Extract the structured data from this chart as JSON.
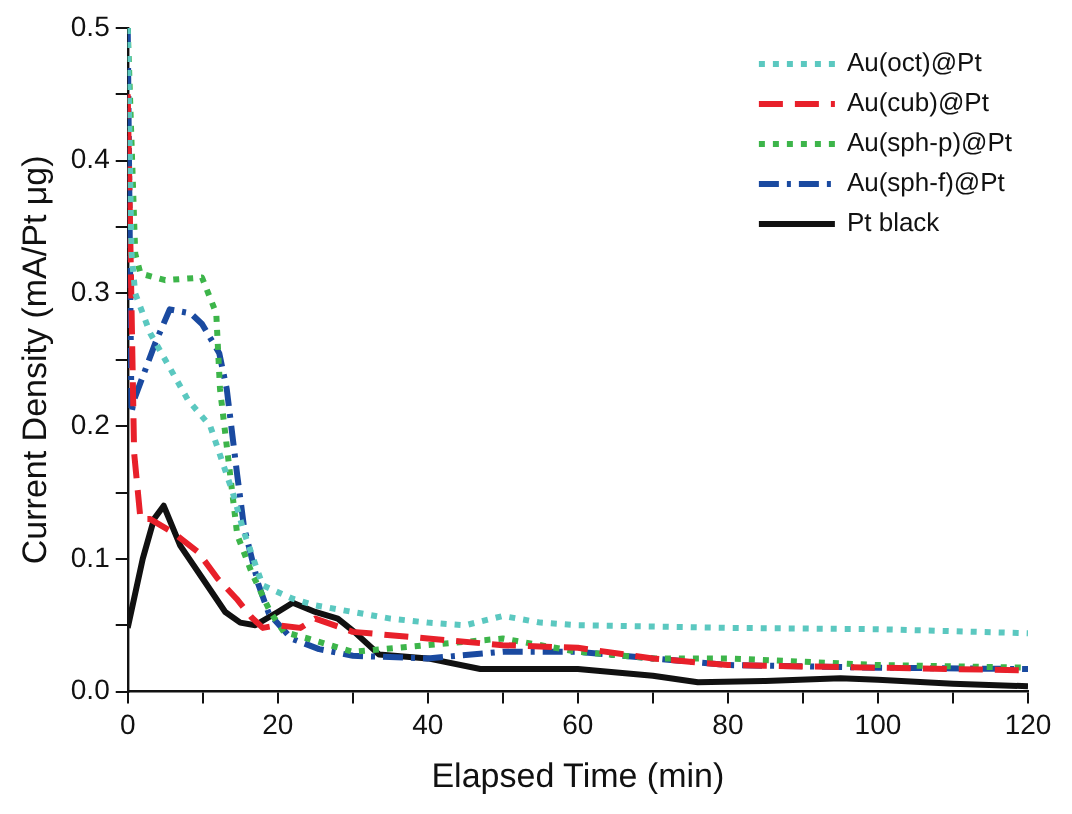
{
  "chart_data": {
    "type": "line",
    "xlabel": "Elapsed Time (min)",
    "ylabel": "Current Density (mA/Pt μg)",
    "xlim": [
      0,
      120
    ],
    "ylim": [
      0,
      0.5
    ],
    "xticks": [
      0,
      {
        "value": 10,
        "label": null
      },
      20,
      {
        "value": 30,
        "label": null
      },
      40,
      {
        "value": 50,
        "label": null
      },
      60,
      {
        "value": 70,
        "label": null
      },
      80,
      {
        "value": 90,
        "label": null
      },
      100,
      {
        "value": 110,
        "label": null
      },
      120
    ],
    "yticks": [
      {
        "value": 0,
        "label": "0.0"
      },
      {
        "value": 0.05,
        "label": null
      },
      0.1,
      {
        "value": 0.15,
        "label": null
      },
      0.2,
      {
        "value": 0.25,
        "label": null
      },
      0.3,
      {
        "value": 0.35,
        "label": null
      },
      0.4,
      {
        "value": 0.45,
        "label": null
      },
      0.5
    ],
    "grid": false,
    "legend": "top right",
    "marker": "none",
    "series": [
      {
        "name": "Au(oct)@Pt",
        "color": "#5bc8c0",
        "line_style": "dotted",
        "x": [
          0,
          0.5,
          1,
          3,
          5,
          8,
          11,
          14,
          15.5,
          18,
          22,
          25,
          30,
          35,
          40,
          45,
          50,
          55,
          60,
          80,
          100,
          120
        ],
        "values": [
          0.5,
          0.33,
          0.3,
          0.27,
          0.25,
          0.22,
          0.2,
          0.15,
          0.12,
          0.08,
          0.07,
          0.065,
          0.06,
          0.055,
          0.052,
          0.05,
          0.057,
          0.052,
          0.05,
          0.048,
          0.047,
          0.044
        ]
      },
      {
        "name": "Au(cub)@Pt",
        "color": "#e8202a",
        "line_style": "dashed",
        "x": [
          0,
          0.85,
          1.7,
          3,
          6,
          9.4,
          12,
          14.5,
          16.5,
          18,
          20,
          23,
          25,
          30,
          40,
          50,
          60,
          70,
          80,
          100,
          120
        ],
        "values": [
          0.45,
          0.18,
          0.13,
          0.13,
          0.12,
          0.105,
          0.085,
          0.07,
          0.056,
          0.048,
          0.05,
          0.048,
          0.055,
          0.045,
          0.04,
          0.035,
          0.033,
          0.025,
          0.02,
          0.018,
          0.016
        ]
      },
      {
        "name": "Au(sph-p)@Pt",
        "color": "#3db54a",
        "line_style": "dotted",
        "x": [
          0,
          1,
          1.7,
          5,
          9.9,
          11.8,
          12.3,
          14.6,
          16.5,
          19,
          20.8,
          24,
          30,
          40,
          50,
          60,
          70,
          80,
          100,
          120
        ],
        "values": [
          0.5,
          0.33,
          0.315,
          0.31,
          0.312,
          0.285,
          0.228,
          0.118,
          0.09,
          0.06,
          0.045,
          0.04,
          0.03,
          0.035,
          0.04,
          0.03,
          0.025,
          0.025,
          0.02,
          0.018
        ]
      },
      {
        "name": "Au(sph-f)@Pt",
        "color": "#1a4aa0",
        "line_style": "dashdot",
        "x": [
          0,
          0.5,
          0.85,
          3.7,
          5.6,
          8.4,
          9.9,
          12.2,
          13.2,
          14.6,
          15.5,
          17.4,
          18.8,
          21.8,
          25.5,
          30,
          40,
          50,
          60,
          70,
          80,
          100,
          120
        ],
        "values": [
          0.5,
          0.21,
          0.22,
          0.263,
          0.288,
          0.285,
          0.277,
          0.255,
          0.228,
          0.163,
          0.124,
          0.081,
          0.059,
          0.04,
          0.032,
          0.027,
          0.025,
          0.03,
          0.03,
          0.025,
          0.02,
          0.018,
          0.017
        ]
      },
      {
        "name": "Pt black",
        "color": "#111111",
        "line_style": "solid",
        "x": [
          0,
          2,
          3.5,
          4.8,
          7,
          10,
          13,
          15,
          17,
          20,
          22,
          25,
          28,
          30.2,
          33.5,
          40,
          47,
          60,
          70,
          76,
          85,
          95,
          100,
          110,
          120
        ],
        "values": [
          0.048,
          0.1,
          0.13,
          0.14,
          0.11,
          0.085,
          0.06,
          0.052,
          0.05,
          0.06,
          0.067,
          0.06,
          0.055,
          0.045,
          0.028,
          0.025,
          0.017,
          0.017,
          0.012,
          0.007,
          0.008,
          0.01,
          0.009,
          0.006,
          0.004
        ]
      }
    ]
  }
}
